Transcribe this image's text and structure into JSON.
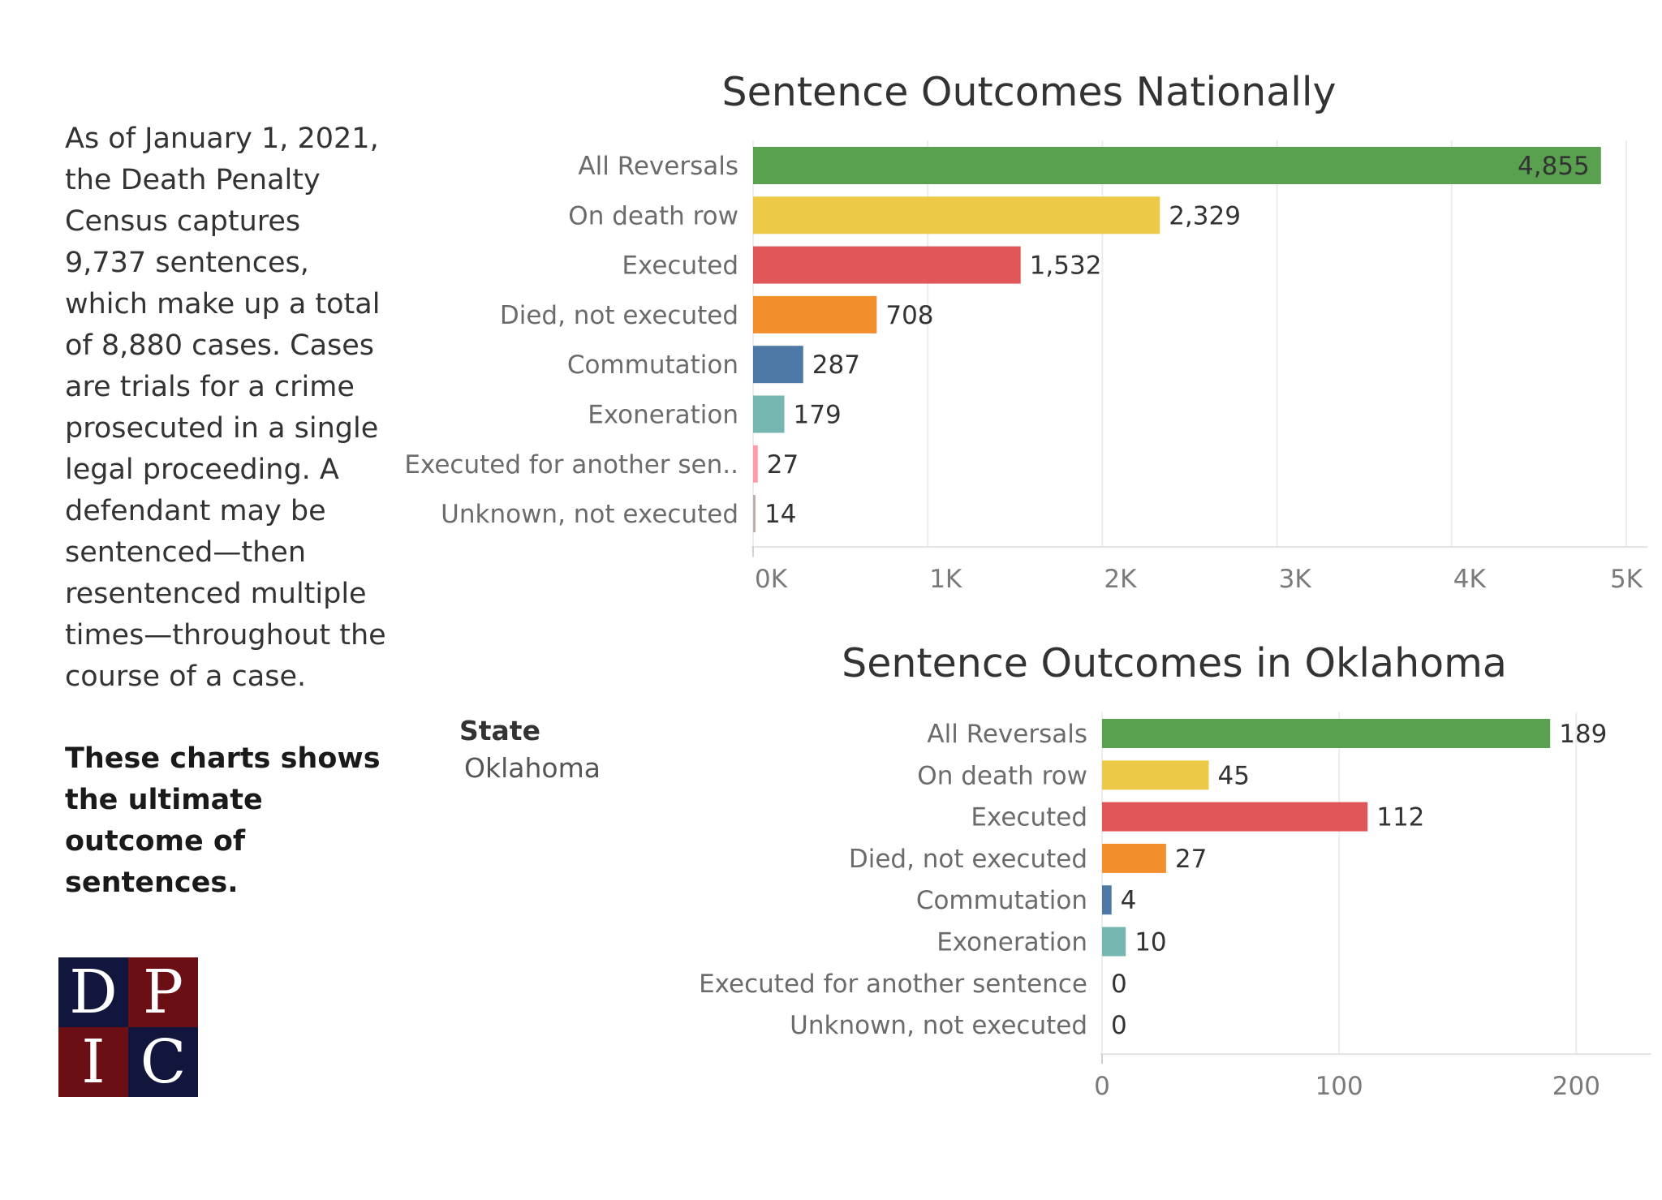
{
  "intro": {
    "text": "As of January 1, 2021, the Death Penalty Census captures 9,737 sentences, which make up a total of 8,880 cases. Cases are trials for a crime prosecuted in a single legal proceeding. A defendant may be sentenced—then resentenced multiple times—throughout the course of a case.",
    "bold_text": "These charts shows the ultimate outcome of sentences."
  },
  "filter": {
    "label": "State",
    "value": "Oklahoma"
  },
  "logo": {
    "letters": [
      "D",
      "P",
      "I",
      "C"
    ],
    "colors": [
      "#12163d",
      "#6b0f14"
    ]
  },
  "colors": {
    "All Reversals": "#59a14f",
    "On death row": "#edc948",
    "Executed": "#e15759",
    "Died, not executed": "#f28e2b",
    "Commutation": "#4e79a7",
    "Exoneration": "#76b7b2",
    "Executed for another sentence": "#ff9da7",
    "Unknown, not executed": "#bab0ac"
  },
  "chart_data": [
    {
      "type": "bar",
      "orientation": "horizontal",
      "title": "Sentence Outcomes Nationally",
      "categories": [
        "All Reversals",
        "On death row",
        "Executed",
        "Died, not executed",
        "Commutation",
        "Exoneration",
        "Executed for another sentence",
        "Unknown, not executed"
      ],
      "category_labels": [
        "All Reversals",
        "On death row",
        "Executed",
        "Died, not executed",
        "Commutation",
        "Exoneration",
        "Executed for another sen..",
        "Unknown, not executed"
      ],
      "values": [
        4855,
        2329,
        1532,
        708,
        287,
        179,
        27,
        14
      ],
      "value_labels": [
        "4,855",
        "2,329",
        "1,532",
        "708",
        "287",
        "179",
        "27",
        "14"
      ],
      "xlim": [
        0,
        5000
      ],
      "ticks": [
        0,
        1000,
        2000,
        3000,
        4000,
        5000
      ],
      "tick_labels": [
        "0K",
        "1K",
        "2K",
        "3K",
        "4K",
        "5K"
      ],
      "grid": true
    },
    {
      "type": "bar",
      "orientation": "horizontal",
      "title": "Sentence Outcomes in Oklahoma",
      "categories": [
        "All Reversals",
        "On death row",
        "Executed",
        "Died, not executed",
        "Commutation",
        "Exoneration",
        "Executed for another sentence",
        "Unknown, not executed"
      ],
      "category_labels": [
        "All Reversals",
        "On death row",
        "Executed",
        "Died, not executed",
        "Commutation",
        "Exoneration",
        "Executed for another sentence",
        "Unknown, not executed"
      ],
      "values": [
        189,
        45,
        112,
        27,
        4,
        10,
        0,
        0
      ],
      "value_labels": [
        "189",
        "45",
        "112",
        "27",
        "4",
        "10",
        "0",
        "0"
      ],
      "xlim": [
        0,
        230
      ],
      "ticks": [
        0,
        100,
        200
      ],
      "tick_labels": [
        "0",
        "100",
        "200"
      ],
      "grid": true
    }
  ]
}
